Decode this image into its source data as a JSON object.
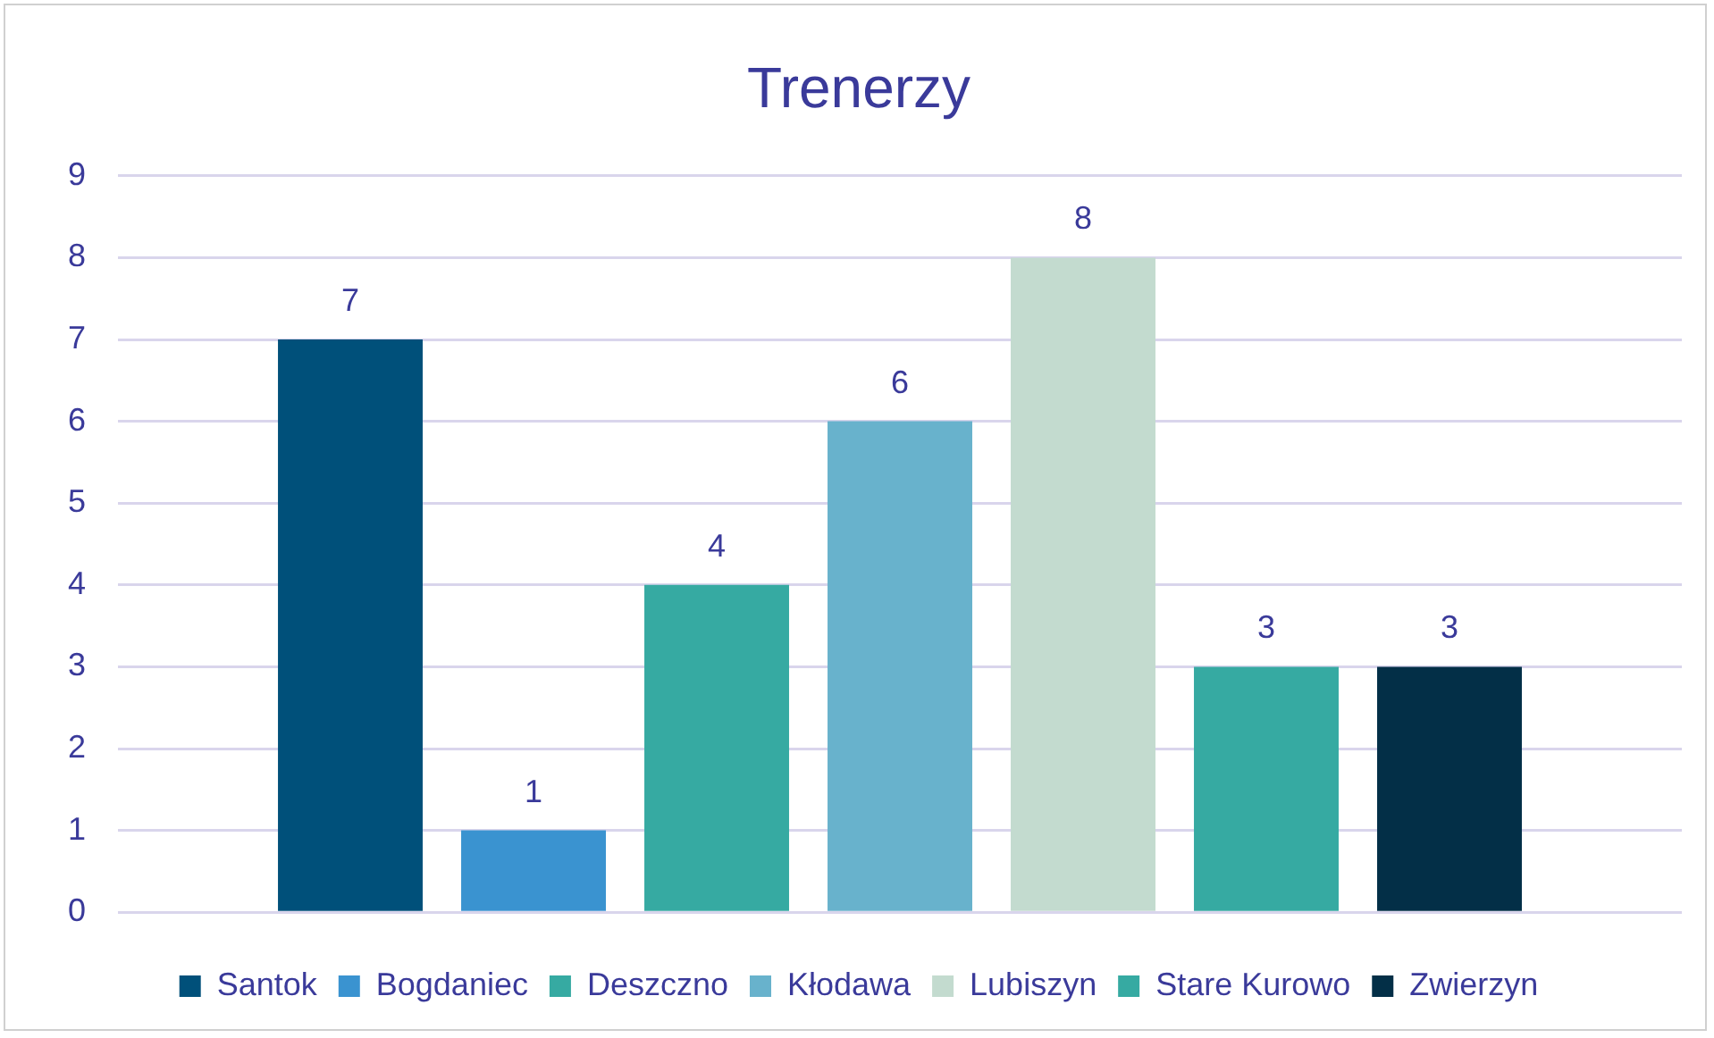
{
  "chart_data": {
    "type": "bar",
    "title": "Trenerzy",
    "categories": [
      null
    ],
    "series": [
      {
        "name": "Santok",
        "color": "#00507a",
        "values": [
          7
        ]
      },
      {
        "name": "Bogdaniec",
        "color": "#3a93d0",
        "values": [
          1
        ]
      },
      {
        "name": "Deszczno",
        "color": "#36aaa2",
        "values": [
          4
        ]
      },
      {
        "name": "Kłodawa",
        "color": "#68b2cc",
        "values": [
          6
        ]
      },
      {
        "name": "Lubiszyn",
        "color": "#c3dbcf",
        "values": [
          8
        ]
      },
      {
        "name": "Stare Kurowo",
        "color": "#36aaa2",
        "values": [
          3
        ]
      },
      {
        "name": "Zwierzyn",
        "color": "#032f47",
        "values": [
          3
        ]
      }
    ],
    "ylim": [
      0,
      9
    ],
    "yticks": [
      0,
      1,
      2,
      3,
      4,
      5,
      6,
      7,
      8,
      9
    ],
    "grid": "y",
    "legend": "bottom",
    "data_labels": true
  }
}
